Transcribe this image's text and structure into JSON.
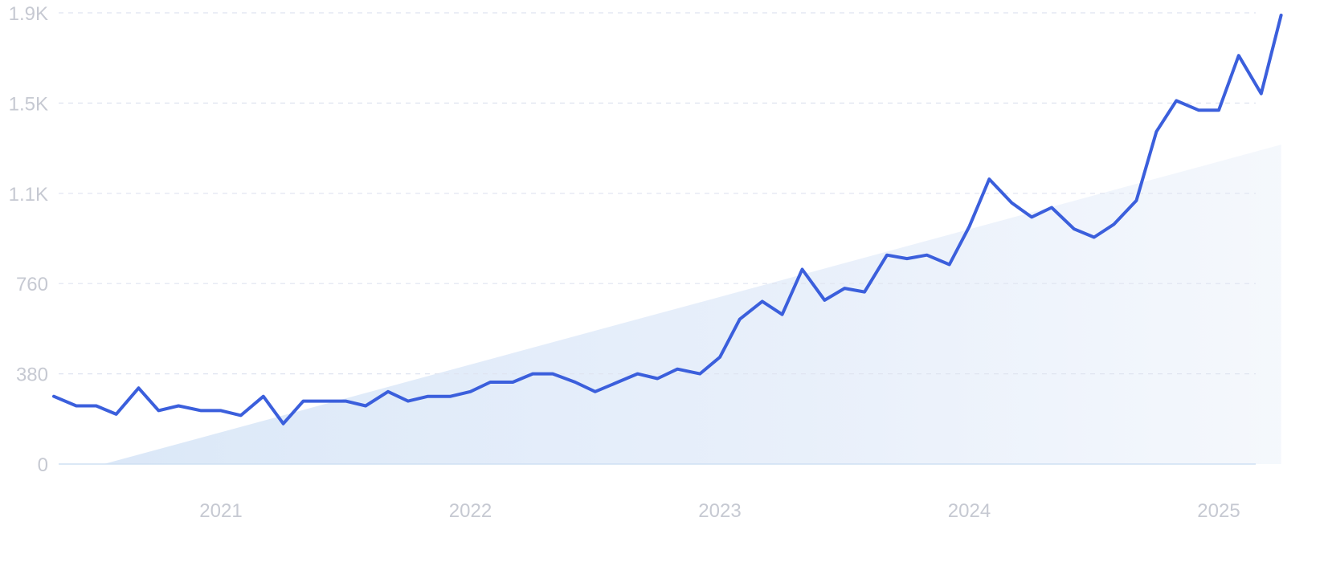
{
  "chart_data": {
    "type": "line",
    "title": "",
    "xlabel": "",
    "ylabel": "",
    "y_ticks": [
      {
        "value": 0,
        "label": "0"
      },
      {
        "value": 380,
        "label": "380"
      },
      {
        "value": 760,
        "label": "760"
      },
      {
        "value": 1140,
        "label": "1.1K"
      },
      {
        "value": 1520,
        "label": "1.5K"
      },
      {
        "value": 1900,
        "label": "1.9K"
      }
    ],
    "x_ticks": [
      {
        "value": 2021,
        "label": "2021"
      },
      {
        "value": 2022,
        "label": "2022"
      },
      {
        "value": 2023,
        "label": "2023"
      },
      {
        "value": 2024,
        "label": "2024"
      },
      {
        "value": 2025,
        "label": "2025"
      }
    ],
    "xlim": [
      2020.33,
      2025.25
    ],
    "ylim": [
      0,
      1900
    ],
    "grid": true,
    "legend": "none",
    "colors": {
      "line": "#3b5fdc",
      "trend_fill": "#dbe8f8",
      "grid": "#dfe4f0",
      "tick_text": "#c6c9d2"
    },
    "trend_area": {
      "start": {
        "x": 2020.53,
        "y": 0
      },
      "end": {
        "x": 2025.25,
        "y": 1345
      }
    },
    "series": [
      {
        "x": [
          2020.33,
          2020.42,
          2020.5,
          2020.58,
          2020.67,
          2020.75,
          2020.83,
          2020.92,
          2021.0,
          2021.08,
          2021.17,
          2021.25,
          2021.33,
          2021.42,
          2021.5,
          2021.58,
          2021.67,
          2021.75,
          2021.83,
          2021.92,
          2022.0,
          2022.08,
          2022.17,
          2022.25,
          2022.33,
          2022.42,
          2022.5,
          2022.58,
          2022.67,
          2022.75,
          2022.83,
          2022.92,
          2023.0,
          2023.08,
          2023.17,
          2023.25,
          2023.33,
          2023.42,
          2023.5,
          2023.58,
          2023.67,
          2023.75,
          2023.83,
          2023.92,
          2024.0,
          2024.08,
          2024.17,
          2024.25,
          2024.33,
          2024.42,
          2024.5,
          2024.58,
          2024.67,
          2024.75,
          2024.83,
          2024.92,
          2025.0,
          2025.08,
          2025.17,
          2025.25
        ],
        "values": [
          285,
          245,
          245,
          210,
          320,
          225,
          245,
          225,
          225,
          205,
          285,
          170,
          265,
          265,
          265,
          245,
          305,
          265,
          285,
          285,
          305,
          345,
          345,
          380,
          380,
          345,
          305,
          340,
          380,
          360,
          400,
          380,
          450,
          610,
          685,
          630,
          820,
          690,
          740,
          725,
          880,
          865,
          880,
          840,
          1000,
          1200,
          1100,
          1040,
          1080,
          990,
          955,
          1010,
          1110,
          1400,
          1530,
          1490,
          1490,
          1720,
          1560,
          1890
        ]
      }
    ]
  }
}
